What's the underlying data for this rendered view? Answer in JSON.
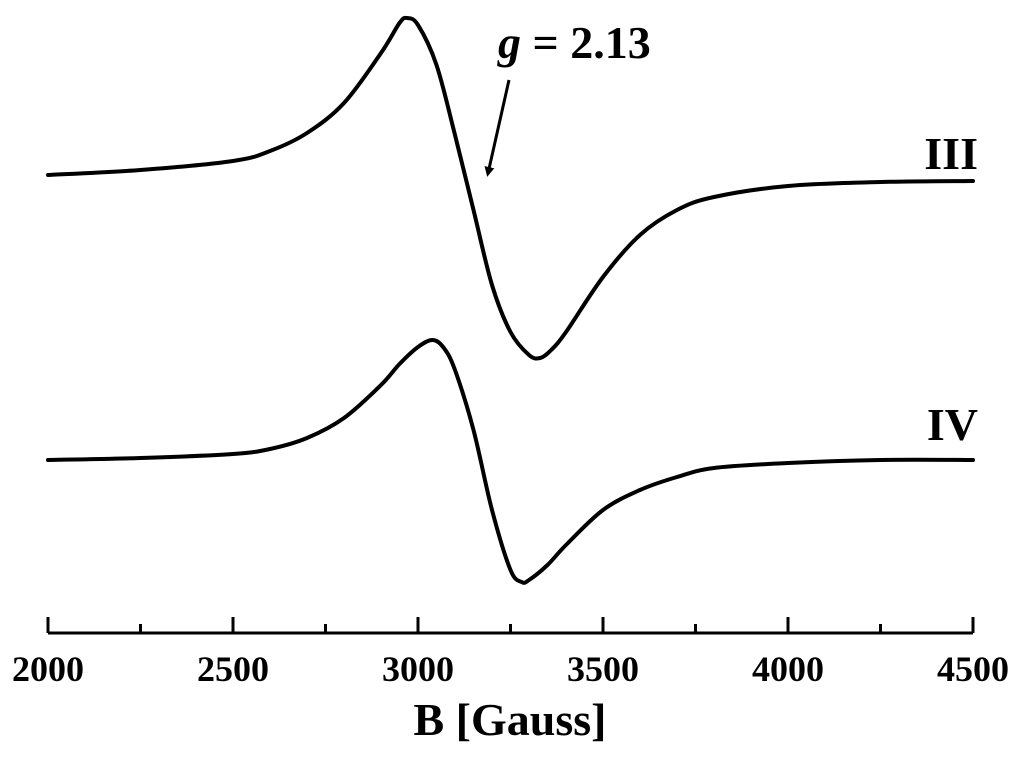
{
  "chart_data": {
    "type": "line",
    "title": "",
    "xlabel": "B [Gauss]",
    "ylabel": "",
    "xlim": [
      2000,
      4500
    ],
    "x_ticks": [
      2000,
      2500,
      3000,
      3500,
      4000,
      4500
    ],
    "grid": false,
    "annotation": {
      "symbol": "g",
      "value_text": " = 2.13",
      "points_to_x": 3190
    },
    "series": [
      {
        "name": "III",
        "x": [
          2000,
          2250,
          2500,
          2600,
          2700,
          2800,
          2900,
          2950,
          2970,
          3000,
          3050,
          3100,
          3150,
          3200,
          3250,
          3300,
          3330,
          3360,
          3400,
          3500,
          3600,
          3700,
          3800,
          4000,
          4250,
          4500
        ],
        "y": [
          0.0,
          0.05,
          0.14,
          0.24,
          0.42,
          0.72,
          1.22,
          1.52,
          1.57,
          1.5,
          1.1,
          0.4,
          -0.35,
          -1.1,
          -1.57,
          -1.8,
          -1.83,
          -1.75,
          -1.57,
          -1.02,
          -0.6,
          -0.35,
          -0.22,
          -0.11,
          -0.07,
          -0.06
        ]
      },
      {
        "name": "IV",
        "x": [
          2000,
          2250,
          2500,
          2600,
          2700,
          2800,
          2900,
          2950,
          3000,
          3040,
          3070,
          3100,
          3150,
          3200,
          3250,
          3280,
          3300,
          3350,
          3400,
          3500,
          3600,
          3700,
          3800,
          4000,
          4250,
          4500
        ],
        "y": [
          0.0,
          0.02,
          0.06,
          0.11,
          0.22,
          0.42,
          0.75,
          0.96,
          1.13,
          1.2,
          1.12,
          0.9,
          0.3,
          -0.5,
          -1.1,
          -1.22,
          -1.2,
          -1.05,
          -0.85,
          -0.5,
          -0.3,
          -0.17,
          -0.08,
          -0.03,
          0.0,
          0.0
        ]
      }
    ]
  }
}
